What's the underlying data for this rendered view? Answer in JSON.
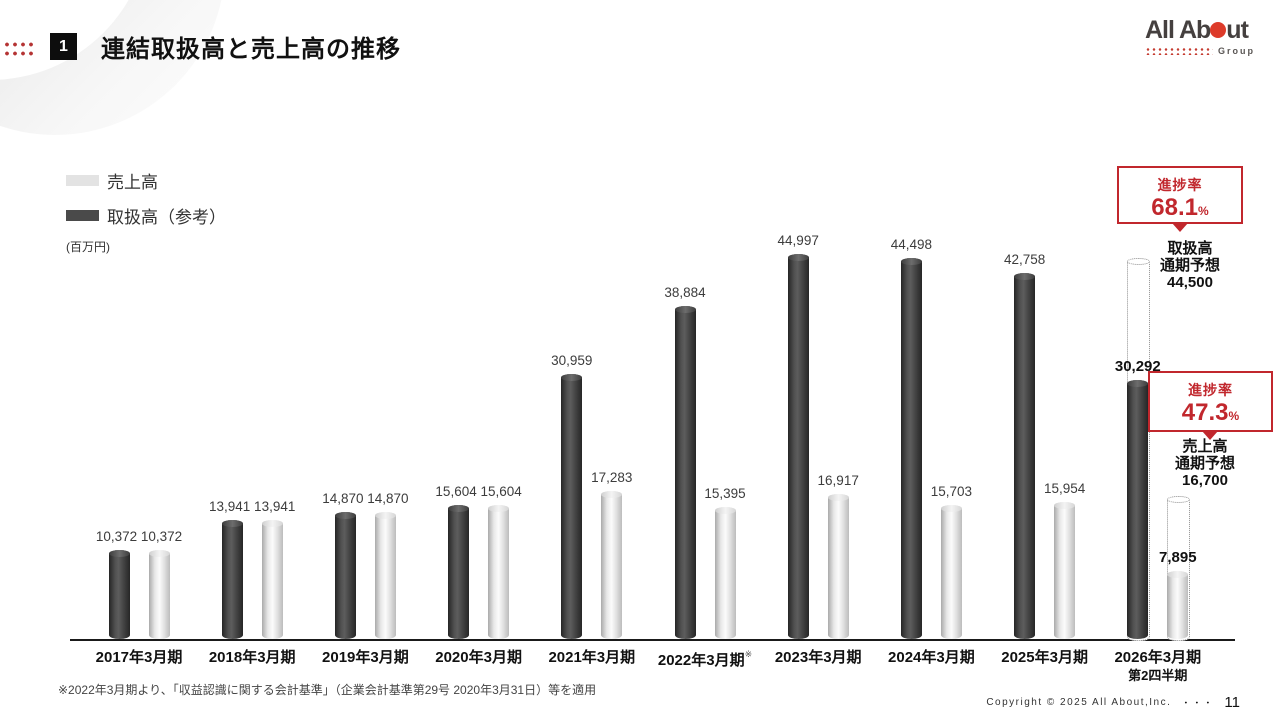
{
  "header": {
    "badge": "1",
    "title": "連結取扱高と売上高の推移"
  },
  "logo": {
    "name_part1": "All Ab",
    "name_part2": "ut",
    "group": "Group"
  },
  "legend": {
    "sales": "売上高",
    "volume": "取扱高（参考）",
    "unit": "(百万円)"
  },
  "chart_data": {
    "type": "bar",
    "unit": "百万円",
    "ylim": [
      0,
      47000
    ],
    "grid": false,
    "legend_position": "top-left",
    "categories": [
      "2017年3月期",
      "2018年3月期",
      "2019年3月期",
      "2020年3月期",
      "2021年3月期",
      "2022年3月期",
      "2023年3月期",
      "2024年3月期",
      "2025年3月期",
      "2026年3月期"
    ],
    "category_notes": {
      "5": "※"
    },
    "category_sub": {
      "9": "第2四半期"
    },
    "series": [
      {
        "name": "取扱高（参考）",
        "color": "#454545",
        "values": [
          10372,
          13941,
          14870,
          15604,
          30959,
          38884,
          44997,
          44498,
          42758,
          30292
        ]
      },
      {
        "name": "売上高",
        "color": "#e8e8e8",
        "values": [
          10372,
          13941,
          14870,
          15604,
          17283,
          15395,
          16917,
          15703,
          15954,
          7895
        ]
      }
    ],
    "combined_label_groups": 4,
    "bold_label_group": 9,
    "forecasts": [
      {
        "series": "取扱高（参考）",
        "value": 44500,
        "category": "2026年3月期"
      },
      {
        "series": "売上高",
        "value": 16700,
        "category": "2026年3月期"
      }
    ]
  },
  "annotations": {
    "progress_volume": {
      "label": "進捗率",
      "value": "68.1",
      "unit": "%"
    },
    "forecast_volume": {
      "line1": "取扱高",
      "line2": "通期予想",
      "value": "44,500"
    },
    "progress_sales": {
      "label": "進捗率",
      "value": "47.3",
      "unit": "%"
    },
    "forecast_sales": {
      "line1": "売上高",
      "line2": "通期予想",
      "value": "16,700"
    }
  },
  "footnote": "※2022年3月期より、「収益認識に関する会計基準」（企業会計基準第29号 2020年3月31日）等を適用",
  "footer": {
    "copyright": "Copyright © 2025 All About,Inc.",
    "dots": "・・・",
    "page": "11"
  }
}
